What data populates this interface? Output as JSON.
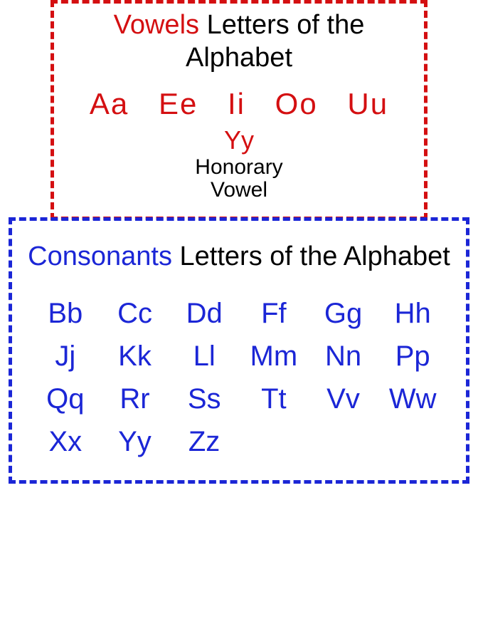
{
  "page": {
    "background_color": "#ffffff"
  },
  "vowels_panel": {
    "border_color": "#d40f11",
    "accent_color": "#d40f11",
    "title_accent": "Vowels",
    "title_rest": " Letters of the Alphabet",
    "title_fontsize": 38,
    "letters": [
      "Aa",
      "Ee",
      "Ii",
      "Oo",
      "Uu"
    ],
    "letters_fontsize": 42,
    "honorary_letter": "Yy",
    "honorary_label_line1": "Honorary",
    "honorary_label_line2": "Vowel",
    "honorary_fontsize": 30
  },
  "consonants_panel": {
    "border_color": "#1b26d6",
    "accent_color": "#1b26d6",
    "title_accent": "Consonants",
    "title_rest": " Letters of the Alphabet",
    "title_fontsize": 38,
    "rows": [
      [
        "Bb",
        "Cc",
        "Dd",
        "Ff",
        "Gg",
        "Hh"
      ],
      [
        "Jj",
        "Kk",
        "Ll",
        "Mm",
        "Nn",
        "Pp"
      ],
      [
        "Qq",
        "Rr",
        "Ss",
        "Tt",
        "Vv",
        "Ww"
      ],
      [
        "Xx",
        "Yy",
        "Zz"
      ]
    ],
    "letters_fontsize": 40
  }
}
